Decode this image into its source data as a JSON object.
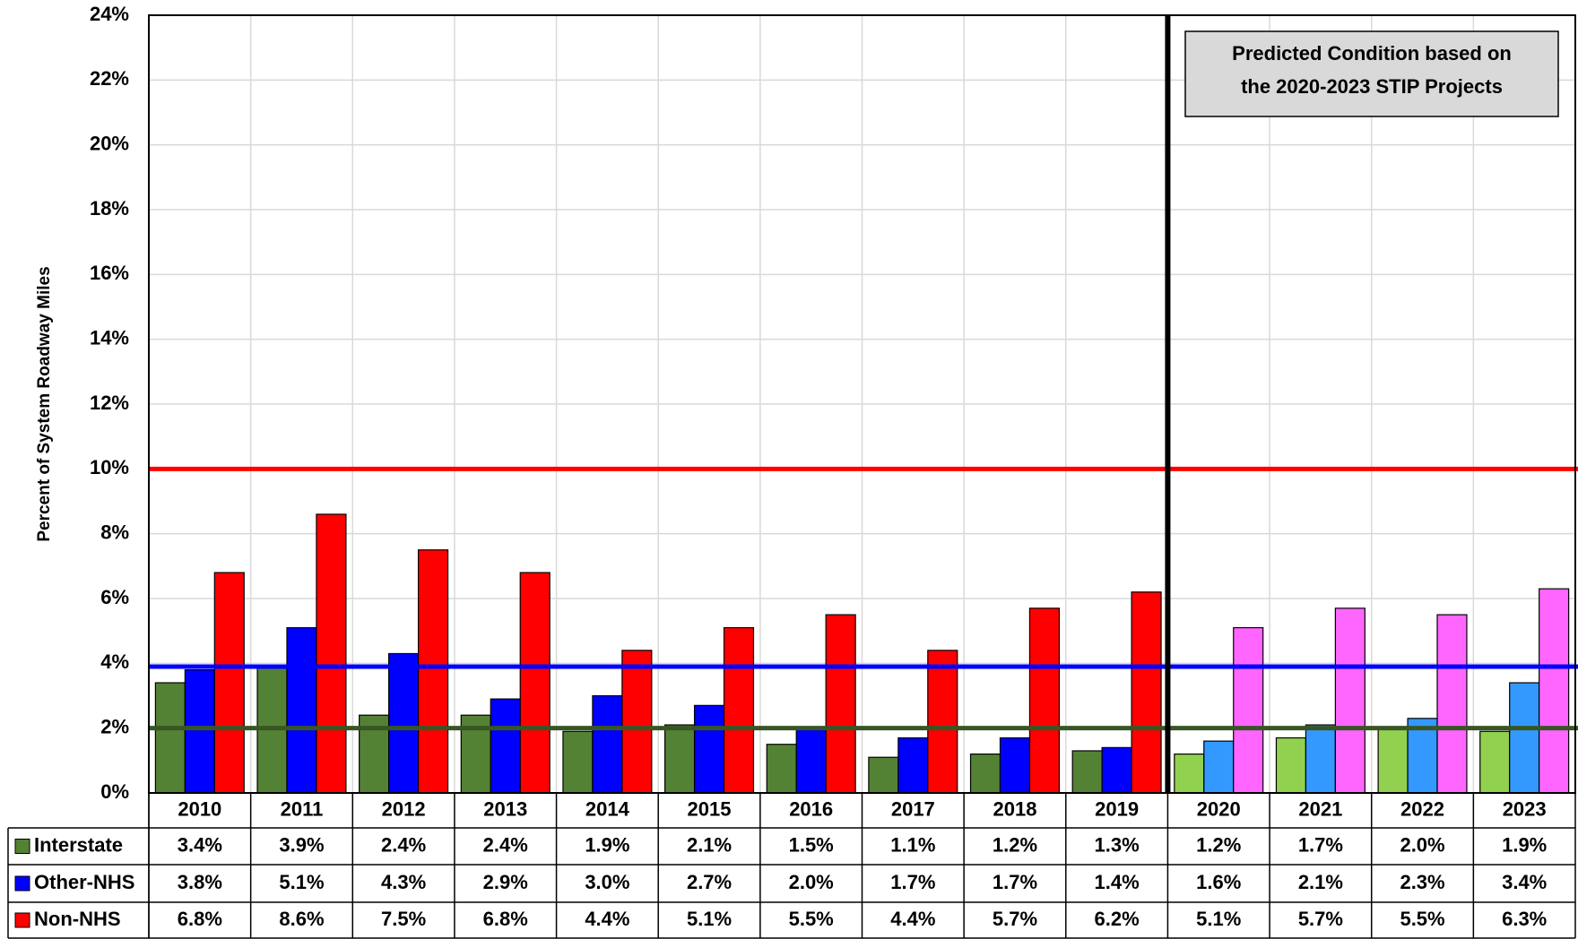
{
  "chart_data": {
    "type": "bar",
    "y_label": "Percent of System Roadway Miles",
    "annotation": [
      "Predicted Condition based on",
      "the 2020-2023 STIP Projects"
    ],
    "categories": [
      "2010",
      "2011",
      "2012",
      "2013",
      "2014",
      "2015",
      "2016",
      "2017",
      "2018",
      "2019",
      "2020",
      "2021",
      "2022",
      "2023"
    ],
    "predicted_from": "2020",
    "series": [
      {
        "name": "Interstate",
        "color": "#548235",
        "predicted_color": "#92d050",
        "values": [
          3.4,
          3.9,
          2.4,
          2.4,
          1.9,
          2.1,
          1.5,
          1.1,
          1.2,
          1.3,
          1.2,
          1.7,
          2.0,
          1.9
        ],
        "value_labels": [
          "3.4%",
          "3.9%",
          "2.4%",
          "2.4%",
          "1.9%",
          "2.1%",
          "1.5%",
          "1.1%",
          "1.2%",
          "1.3%",
          "1.2%",
          "1.7%",
          "2.0%",
          "1.9%"
        ]
      },
      {
        "name": "Other-NHS",
        "color": "#0000ff",
        "predicted_color": "#3399ff",
        "values": [
          3.8,
          5.1,
          4.3,
          2.9,
          3.0,
          2.7,
          2.0,
          1.7,
          1.7,
          1.4,
          1.6,
          2.1,
          2.3,
          3.4
        ],
        "value_labels": [
          "3.8%",
          "5.1%",
          "4.3%",
          "2.9%",
          "3.0%",
          "2.7%",
          "2.0%",
          "1.7%",
          "1.7%",
          "1.4%",
          "1.6%",
          "2.1%",
          "2.3%",
          "3.4%"
        ]
      },
      {
        "name": "Non-NHS",
        "color": "#ff0000",
        "predicted_color": "#ff66ff",
        "values": [
          6.8,
          8.6,
          7.5,
          6.8,
          4.4,
          5.1,
          5.5,
          4.4,
          5.7,
          6.2,
          5.1,
          5.7,
          5.5,
          6.3
        ],
        "value_labels": [
          "6.8%",
          "8.6%",
          "7.5%",
          "6.8%",
          "4.4%",
          "5.1%",
          "5.5%",
          "4.4%",
          "5.7%",
          "6.2%",
          "5.1%",
          "5.7%",
          "5.5%",
          "6.3%"
        ]
      }
    ],
    "reference_lines": [
      {
        "value": 10,
        "color": "#ff0000"
      },
      {
        "value": 3.9,
        "color": "#0000ff"
      },
      {
        "value": 2,
        "color": "#375623"
      }
    ],
    "ylim": [
      0,
      24
    ],
    "yticks": [
      {
        "value": 0,
        "label": "0%"
      },
      {
        "value": 2,
        "label": "2%"
      },
      {
        "value": 4,
        "label": "4%"
      },
      {
        "value": 6,
        "label": "6%"
      },
      {
        "value": 8,
        "label": "8%"
      },
      {
        "value": 10,
        "label": "10%"
      },
      {
        "value": 12,
        "label": "12%"
      },
      {
        "value": 14,
        "label": "14%"
      },
      {
        "value": 16,
        "label": "16%"
      },
      {
        "value": 18,
        "label": "18%"
      },
      {
        "value": 20,
        "label": "20%"
      },
      {
        "value": 22,
        "label": "22%"
      },
      {
        "value": 24,
        "label": "24%"
      }
    ],
    "grid": true
  }
}
